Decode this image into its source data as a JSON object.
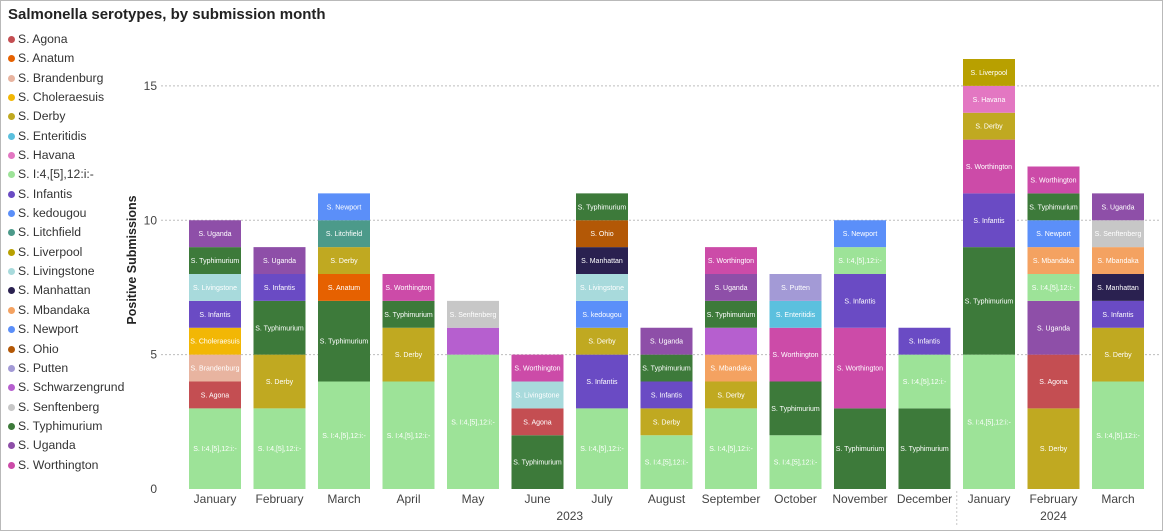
{
  "chart_data": {
    "type": "bar",
    "stacked": true,
    "title": "Salmonella serotypes, by submission month",
    "ylabel": "Positive Submissions",
    "ylim": [
      0,
      16
    ],
    "yticks": [
      0,
      5,
      10,
      15
    ],
    "grid": true,
    "legend_position": "left",
    "categories": [
      "January",
      "February",
      "March",
      "April",
      "May",
      "June",
      "July",
      "August",
      "September",
      "October",
      "November",
      "December",
      "January",
      "February",
      "March"
    ],
    "year_groups": [
      {
        "label": "2023",
        "start": 0,
        "end": 11
      },
      {
        "label": "2024",
        "start": 12,
        "end": 14
      }
    ],
    "legend": [
      {
        "name": "S. Agona",
        "color": "#c44e52"
      },
      {
        "name": "S. Anatum",
        "color": "#e66100"
      },
      {
        "name": "S. Brandenburg",
        "color": "#e8b4a0"
      },
      {
        "name": "S. Choleraesuis",
        "color": "#f2b705"
      },
      {
        "name": "S. Derby",
        "color": "#c0a921"
      },
      {
        "name": "S. Enteritidis",
        "color": "#5bc0de"
      },
      {
        "name": "S. Havana",
        "color": "#e377c2"
      },
      {
        "name": "S. I:4,[5],12:i:-",
        "color": "#9de398"
      },
      {
        "name": "S. Infantis",
        "color": "#6a4bc4"
      },
      {
        "name": "S. kedougou",
        "color": "#5b8ff9"
      },
      {
        "name": "S. Litchfield",
        "color": "#4c9a8a"
      },
      {
        "name": "S. Liverpool",
        "color": "#b8a000"
      },
      {
        "name": "S. Livingstone",
        "color": "#a8dadc"
      },
      {
        "name": "S. Manhattan",
        "color": "#2a2150"
      },
      {
        "name": "S. Mbandaka",
        "color": "#f4a261"
      },
      {
        "name": "S. Newport",
        "color": "#5b8ff9"
      },
      {
        "name": "S. Ohio",
        "color": "#b35806"
      },
      {
        "name": "S. Putten",
        "color": "#a39ad6"
      },
      {
        "name": "S. Schwarzengrund",
        "color": "#b65fcf"
      },
      {
        "name": "S. Senftenberg",
        "color": "#c7c7c7"
      },
      {
        "name": "S. Typhimurium",
        "color": "#3d7a3a"
      },
      {
        "name": "S. Uganda",
        "color": "#8e4fa8"
      },
      {
        "name": "S. Worthington",
        "color": "#cc4ba8"
      }
    ],
    "stacks": [
      [
        {
          "s": "S. I:4,[5],12:i:-",
          "v": 3,
          "label": "S. I:4,[5],12:i:-"
        },
        {
          "s": "S. Agona",
          "v": 1,
          "label": "S. Agona"
        },
        {
          "s": "S. Brandenburg",
          "v": 1,
          "label": "S. Brandenburg"
        },
        {
          "s": "S. Choleraesuis",
          "v": 1,
          "label": "S. Choleraesuis"
        },
        {
          "s": "S. Infantis",
          "v": 1,
          "label": "S. Infantis"
        },
        {
          "s": "S. Livingstone",
          "v": 1,
          "label": "S. Livingstone"
        },
        {
          "s": "S. Typhimurium",
          "v": 1,
          "label": "S. Typhimurium"
        },
        {
          "s": "S. Uganda",
          "v": 1,
          "label": "S. Uganda"
        }
      ],
      [
        {
          "s": "S. I:4,[5],12:i:-",
          "v": 3,
          "label": "S. I:4,[5],12:i:-"
        },
        {
          "s": "S. Derby",
          "v": 2,
          "label": "S. Derby"
        },
        {
          "s": "S. Typhimurium",
          "v": 2,
          "label": "S. Typhimurium"
        },
        {
          "s": "S. Infantis",
          "v": 1,
          "label": "S. Infantis"
        },
        {
          "s": "S. Uganda",
          "v": 1,
          "label": "S. Uganda"
        }
      ],
      [
        {
          "s": "S. I:4,[5],12:i:-",
          "v": 4,
          "label": "S. I:4,[5],12:i:-"
        },
        {
          "s": "S. Typhimurium",
          "v": 3,
          "label": "S. Typhimurium"
        },
        {
          "s": "S. Anatum",
          "v": 1,
          "label": "S. Anatum"
        },
        {
          "s": "S. Derby",
          "v": 1,
          "label": "S. Derby"
        },
        {
          "s": "S. Litchfield",
          "v": 1,
          "label": "S. Litchfield"
        },
        {
          "s": "S. Newport",
          "v": 1,
          "label": "S. Newport"
        }
      ],
      [
        {
          "s": "S. I:4,[5],12:i:-",
          "v": 4,
          "label": "S. I:4,[5],12:i:-"
        },
        {
          "s": "S. Derby",
          "v": 2,
          "label": "S. Derby"
        },
        {
          "s": "S. Typhimurium",
          "v": 1,
          "label": "S. Typhimurium"
        },
        {
          "s": "S. Worthington",
          "v": 1,
          "label": "S. Worthington"
        }
      ],
      [
        {
          "s": "S. I:4,[5],12:i:-",
          "v": 5,
          "label": "S. I:4,[5],12:i:-"
        },
        {
          "s": "S. Schwarzengrund",
          "v": 1,
          "label": ""
        },
        {
          "s": "S. Senftenberg",
          "v": 1,
          "label": "S. Senftenberg"
        }
      ],
      [
        {
          "s": "S. Typhimurium",
          "v": 2,
          "label": "S. Typhimurium"
        },
        {
          "s": "S. Agona",
          "v": 1,
          "label": "S. Agona"
        },
        {
          "s": "S. Livingstone",
          "v": 1,
          "label": "S. Livingstone"
        },
        {
          "s": "S. Worthington",
          "v": 1,
          "label": "S. Worthington"
        }
      ],
      [
        {
          "s": "S. I:4,[5],12:i:-",
          "v": 3,
          "label": "S. I:4,[5],12:i:-"
        },
        {
          "s": "S. Infantis",
          "v": 2,
          "label": "S. Infantis"
        },
        {
          "s": "S. Derby",
          "v": 1,
          "label": "S. Derby"
        },
        {
          "s": "S. kedougou",
          "v": 1,
          "label": "S. kedougou"
        },
        {
          "s": "S. Livingstone",
          "v": 1,
          "label": "S. Livingstone"
        },
        {
          "s": "S. Manhattan",
          "v": 1,
          "label": "S. Manhattan"
        },
        {
          "s": "S. Ohio",
          "v": 1,
          "label": "S. Ohio"
        },
        {
          "s": "S. Typhimurium",
          "v": 1,
          "label": "S. Typhimurium"
        }
      ],
      [
        {
          "s": "S. I:4,[5],12:i:-",
          "v": 2,
          "label": "S. I:4,[5],12:i:-"
        },
        {
          "s": "S. Derby",
          "v": 1,
          "label": "S. Derby"
        },
        {
          "s": "S. Infantis",
          "v": 1,
          "label": "S. Infantis"
        },
        {
          "s": "S. Typhimurium",
          "v": 1,
          "label": "S. Typhimurium"
        },
        {
          "s": "S. Uganda",
          "v": 1,
          "label": "S. Uganda"
        }
      ],
      [
        {
          "s": "S. I:4,[5],12:i:-",
          "v": 3,
          "label": "S. I:4,[5],12:i:-"
        },
        {
          "s": "S. Derby",
          "v": 1,
          "label": "S. Derby"
        },
        {
          "s": "S. Mbandaka",
          "v": 1,
          "label": "S. Mbandaka"
        },
        {
          "s": "S. Schwarzengrund",
          "v": 1,
          "label": ""
        },
        {
          "s": "S. Typhimurium",
          "v": 1,
          "label": "S. Typhimurium"
        },
        {
          "s": "S. Uganda",
          "v": 1,
          "label": "S. Uganda"
        },
        {
          "s": "S. Worthington",
          "v": 1,
          "label": "S. Worthington"
        }
      ],
      [
        {
          "s": "S. I:4,[5],12:i:-",
          "v": 2,
          "label": "S. I:4,[5],12:i:-"
        },
        {
          "s": "S. Typhimurium",
          "v": 2,
          "label": "S. Typhimurium"
        },
        {
          "s": "S. Worthington",
          "v": 2,
          "label": "S. Worthington"
        },
        {
          "s": "S. Enteritidis",
          "v": 1,
          "label": "S. Enteritidis"
        },
        {
          "s": "S. Putten",
          "v": 1,
          "label": "S. Putten"
        }
      ],
      [
        {
          "s": "S. Typhimurium",
          "v": 3,
          "label": "S. Typhimurium"
        },
        {
          "s": "S. Worthington",
          "v": 3,
          "label": "S. Worthington"
        },
        {
          "s": "S. Infantis",
          "v": 2,
          "label": "S. Infantis"
        },
        {
          "s": "S. I:4,[5],12:i:-",
          "v": 1,
          "label": "S. I:4,[5],12:i:-"
        },
        {
          "s": "S. Newport",
          "v": 1,
          "label": "S. Newport"
        }
      ],
      [
        {
          "s": "S. Typhimurium",
          "v": 3,
          "label": "S. Typhimurium"
        },
        {
          "s": "S. I:4,[5],12:i:-",
          "v": 2,
          "label": "S. I:4,[5],12:i:-"
        },
        {
          "s": "S. Infantis",
          "v": 1,
          "label": "S. Infantis"
        }
      ],
      [
        {
          "s": "S. I:4,[5],12:i:-",
          "v": 5,
          "label": "S. I:4,[5],12:i:-"
        },
        {
          "s": "S. Typhimurium",
          "v": 4,
          "label": "S. Typhimurium"
        },
        {
          "s": "S. Infantis",
          "v": 2,
          "label": "S. Infantis"
        },
        {
          "s": "S. Worthington",
          "v": 2,
          "label": "S. Worthington"
        },
        {
          "s": "S. Derby",
          "v": 1,
          "label": "S. Derby"
        },
        {
          "s": "S. Havana",
          "v": 1,
          "label": "S. Havana"
        },
        {
          "s": "S. Liverpool",
          "v": 1,
          "label": "S. Liverpool"
        }
      ],
      [
        {
          "s": "S. Derby",
          "v": 3,
          "label": "S. Derby"
        },
        {
          "s": "S. Agona",
          "v": 2,
          "label": "S. Agona"
        },
        {
          "s": "S. Uganda",
          "v": 2,
          "label": "S. Uganda"
        },
        {
          "s": "S. I:4,[5],12:i:-",
          "v": 1,
          "label": "S. I:4,[5],12:i:-"
        },
        {
          "s": "S. Mbandaka",
          "v": 1,
          "label": "S. Mbandaka"
        },
        {
          "s": "S. Newport",
          "v": 1,
          "label": "S. Newport"
        },
        {
          "s": "S. Typhimurium",
          "v": 1,
          "label": "S. Typhimurium"
        },
        {
          "s": "S. Worthington",
          "v": 1,
          "label": "S. Worthington"
        }
      ],
      [
        {
          "s": "S. I:4,[5],12:i:-",
          "v": 4,
          "label": "S. I:4,[5],12:i:-"
        },
        {
          "s": "S. Derby",
          "v": 2,
          "label": "S. Derby"
        },
        {
          "s": "S. Infantis",
          "v": 1,
          "label": "S. Infantis"
        },
        {
          "s": "S. Manhattan",
          "v": 1,
          "label": "S. Manhattan"
        },
        {
          "s": "S. Mbandaka",
          "v": 1,
          "label": "S. Mbandaka"
        },
        {
          "s": "S. Senftenberg",
          "v": 1,
          "label": "S. Senftenberg"
        },
        {
          "s": "S. Uganda",
          "v": 1,
          "label": "S. Uganda"
        }
      ]
    ]
  }
}
